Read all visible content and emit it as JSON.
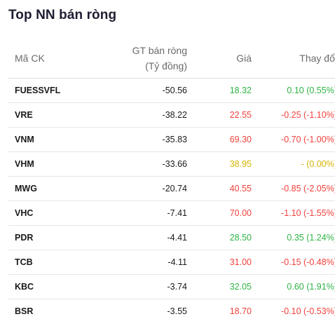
{
  "widget": {
    "title": "Top NN bán ròng"
  },
  "colors": {
    "up": "#2fb344",
    "down": "#f0413c",
    "ref": "#d4b400"
  },
  "table": {
    "headers": {
      "symbol": "Mã CK",
      "net_value_line1": "GT bán ròng",
      "net_value_line2": "(Tỷ đồng)",
      "price": "Giá",
      "change": "Thay đổi"
    },
    "rows": [
      {
        "symbol": "FUESSVFL",
        "net_value": "-50.56",
        "price": "18.32",
        "change": "0.10 (0.55%)",
        "trend": "up"
      },
      {
        "symbol": "VRE",
        "net_value": "-38.22",
        "price": "22.55",
        "change": "-0.25 (-1.10%)",
        "trend": "down"
      },
      {
        "symbol": "VNM",
        "net_value": "-35.83",
        "price": "69.30",
        "change": "-0.70 (-1.00%)",
        "trend": "down"
      },
      {
        "symbol": "VHM",
        "net_value": "-33.66",
        "price": "38.95",
        "change": "- (0.00%)",
        "trend": "ref"
      },
      {
        "symbol": "MWG",
        "net_value": "-20.74",
        "price": "40.55",
        "change": "-0.85 (-2.05%)",
        "trend": "down"
      },
      {
        "symbol": "VHC",
        "net_value": "-7.41",
        "price": "70.00",
        "change": "-1.10 (-1.55%)",
        "trend": "down"
      },
      {
        "symbol": "PDR",
        "net_value": "-4.41",
        "price": "28.50",
        "change": "0.35 (1.24%)",
        "trend": "up"
      },
      {
        "symbol": "TCB",
        "net_value": "-4.11",
        "price": "31.00",
        "change": "-0.15 (-0.48%)",
        "trend": "down"
      },
      {
        "symbol": "KBC",
        "net_value": "-3.74",
        "price": "32.05",
        "change": "0.60 (1.91%)",
        "trend": "up"
      },
      {
        "symbol": "BSR",
        "net_value": "-3.55",
        "price": "18.70",
        "change": "-0.10 (-0.53%)",
        "trend": "down"
      }
    ]
  }
}
